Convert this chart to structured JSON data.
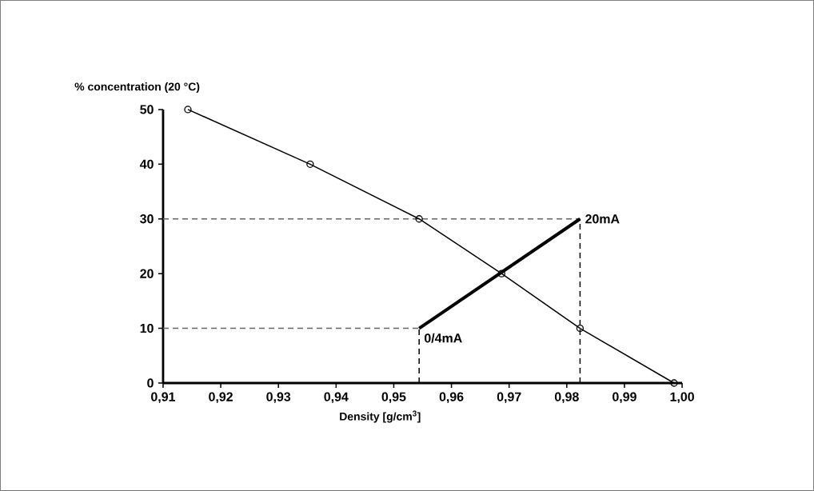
{
  "chart_data": {
    "type": "line",
    "xlabel": "Density [g/cm$^{3}$]",
    "ylabel": "% concentration (20 °C)",
    "xlim": [
      0.91,
      1.0
    ],
    "ylim": [
      0,
      50
    ],
    "xticks": [
      {
        "value": 0.91,
        "label": "0,91"
      },
      {
        "value": 0.92,
        "label": "0,92"
      },
      {
        "value": 0.93,
        "label": "0,93"
      },
      {
        "value": 0.94,
        "label": "0,94"
      },
      {
        "value": 0.95,
        "label": "0,95"
      },
      {
        "value": 0.96,
        "label": "0,96"
      },
      {
        "value": 0.97,
        "label": "0,97"
      },
      {
        "value": 0.98,
        "label": "0,98"
      },
      {
        "value": 0.99,
        "label": "0,99"
      },
      {
        "value": 1.0,
        "label": "1,00"
      }
    ],
    "yticks": [
      0,
      10,
      20,
      30,
      40,
      50
    ],
    "series": [
      {
        "color": "#666666",
        "line_style": "dashed",
        "marker": "none",
        "x": [
          0.91,
          0.9823
        ],
        "values": [
          30,
          30
        ]
      },
      {
        "color": "#666666",
        "line_style": "dashed",
        "marker": "none",
        "x": [
          0.91,
          0.9544
        ],
        "values": [
          10,
          10
        ]
      },
      {
        "color": "#000000",
        "line_style": "dashed",
        "marker": "none",
        "x": [
          0.9544,
          0.9544
        ],
        "values": [
          0,
          10
        ]
      },
      {
        "color": "#000000",
        "line_style": "dashed",
        "marker": "none",
        "x": [
          0.9823,
          0.9823
        ],
        "values": [
          0,
          30
        ]
      },
      {
        "color": "#000000",
        "line_style": "solid",
        "marker": "circle",
        "x": [
          0.9143,
          0.9355,
          0.9544,
          0.9687,
          0.9823,
          0.9986
        ],
        "values": [
          50,
          40,
          30,
          20,
          10,
          0
        ]
      },
      {
        "color": "#000000",
        "line_style": "solid",
        "marker": "none",
        "x": [
          0.9544,
          0.9823
        ],
        "values": [
          10,
          30
        ]
      }
    ],
    "annotations": [
      {
        "text": "20mA",
        "x": 0.9823,
        "y": 30
      },
      {
        "text": "0/4mA",
        "x": 0.9544,
        "y": 10
      }
    ]
  }
}
